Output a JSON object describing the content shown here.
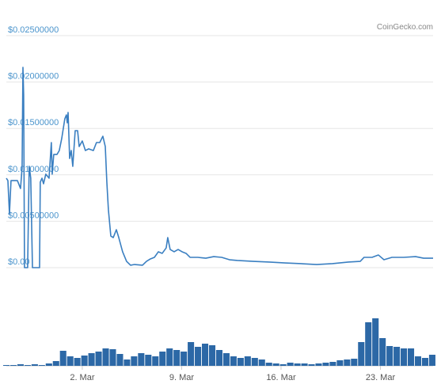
{
  "chart_data": {
    "type": "line",
    "credit": "CoinGecko.com",
    "xlim": [
      -3.35,
      26.71
    ],
    "xticks": [
      {
        "value": 2,
        "label": "2. Mar"
      },
      {
        "value": 9,
        "label": "9. Mar"
      },
      {
        "value": 16,
        "label": "16. Mar"
      },
      {
        "value": 23,
        "label": "23. Mar"
      }
    ],
    "ylim": [
      0,
      0.025
    ],
    "yticks": [
      {
        "value": 0.025,
        "label": "$0.02500000"
      },
      {
        "value": 0.02,
        "label": "$0.02000000"
      },
      {
        "value": 0.015,
        "label": "$0.01500000"
      },
      {
        "value": 0.01,
        "label": "$0.01000000"
      },
      {
        "value": 0.005,
        "label": "$0.00500000"
      },
      {
        "value": 0,
        "label": "$0.00"
      }
    ],
    "y2lim": [
      0,
      90
    ],
    "grid": true,
    "series": [
      {
        "type": "line",
        "color": "#3a7fc1",
        "x": [
          -3.35,
          -3.24,
          -3.13,
          -3.02,
          -2.57,
          -2.35,
          -2.24,
          -2.18,
          -2.13,
          -2.07,
          -1.85,
          -1.74,
          -1.63,
          -1.51,
          -1.01,
          -0.96,
          -0.84,
          -0.73,
          -0.57,
          -0.34,
          -0.18,
          -0.12,
          -0.01,
          0.22,
          0.38,
          0.55,
          0.77,
          0.88,
          0.94,
          1.0,
          1.11,
          1.22,
          1.33,
          1.5,
          1.67,
          1.78,
          2.0,
          2.22,
          2.45,
          2.78,
          3.0,
          3.23,
          3.45,
          3.62,
          3.73,
          3.84,
          4.01,
          4.18,
          4.4,
          4.57,
          4.84,
          5.12,
          5.4,
          5.68,
          6.24,
          6.52,
          6.8,
          7.08,
          7.36,
          7.63,
          7.91,
          8.02,
          8.19,
          8.47,
          8.75,
          9.03,
          9.31,
          9.59,
          10.14,
          10.7,
          11.26,
          11.82,
          12.37,
          12.93,
          14.05,
          15.16,
          16.28,
          17.39,
          18.51,
          19.62,
          20.74,
          21.58,
          21.85,
          22.41,
          22.86,
          23.25,
          23.81,
          24.64,
          25.48,
          26.04,
          26.71
        ],
        "values": [
          0.00964,
          0.00938,
          0.0058,
          0.00938,
          0.00938,
          0.00853,
          0.01075,
          0.02158,
          0.0186,
          0,
          0,
          0.01092,
          0.00964,
          0,
          0,
          0.00921,
          0.00964,
          0.00904,
          0.01007,
          0.00964,
          0.01348,
          0.01007,
          0.0122,
          0.0122,
          0.01262,
          0.0139,
          0.01604,
          0.01646,
          0.01561,
          0.01672,
          0.01177,
          0.01262,
          0.01092,
          0.01476,
          0.01476,
          0.01305,
          0.01365,
          0.01262,
          0.0128,
          0.01262,
          0.01348,
          0.01348,
          0.01416,
          0.01305,
          0.00921,
          0.00623,
          0.00341,
          0.00324,
          0.00409,
          0.00324,
          0.00171,
          0.00068,
          0.00026,
          0.00034,
          0.00026,
          0.00068,
          0.00094,
          0.00111,
          0.00171,
          0.00154,
          0.00213,
          0.00324,
          0.00196,
          0.00171,
          0.00196,
          0.00171,
          0.00154,
          0.00111,
          0.00111,
          0.00102,
          0.00119,
          0.00111,
          0.00085,
          0.00077,
          0.00068,
          0.0006,
          0.00051,
          0.00043,
          0.00034,
          0.00043,
          0.0006,
          0.00068,
          0.00111,
          0.00111,
          0.00136,
          0.00085,
          0.00111,
          0.00111,
          0.00119,
          0.00102,
          0.00102
        ]
      },
      {
        "type": "bar",
        "axis": "y2",
        "color": "#2c68a6",
        "x": [
          -3.35,
          -2.85,
          -2.35,
          -1.85,
          -1.35,
          -0.85,
          -0.35,
          0.15,
          0.65,
          1.15,
          1.65,
          2.15,
          2.65,
          3.15,
          3.65,
          4.15,
          4.65,
          5.15,
          5.65,
          6.15,
          6.65,
          7.15,
          7.65,
          8.15,
          8.65,
          9.15,
          9.65,
          10.15,
          10.65,
          11.15,
          11.65,
          12.15,
          12.65,
          13.15,
          13.65,
          14.15,
          14.65,
          15.15,
          15.65,
          16.15,
          16.65,
          17.15,
          17.65,
          18.15,
          18.65,
          19.15,
          19.65,
          20.15,
          20.65,
          21.15,
          21.65,
          22.15,
          22.65,
          23.15,
          23.65,
          24.15,
          24.65,
          25.15,
          25.65,
          26.15,
          26.65
        ],
        "values": [
          1,
          1,
          2,
          1,
          2,
          1,
          3,
          6,
          19,
          12,
          10,
          13,
          16,
          18,
          22,
          21,
          15,
          8,
          12,
          16,
          14,
          12,
          18,
          22,
          20,
          18,
          30,
          24,
          28,
          26,
          20,
          16,
          12,
          10,
          12,
          10,
          8,
          4,
          3,
          2,
          4,
          3,
          3,
          2,
          3,
          4,
          5,
          7,
          8,
          9,
          30,
          55,
          60,
          35,
          25,
          24,
          22,
          22,
          12,
          10,
          14
        ]
      }
    ]
  }
}
